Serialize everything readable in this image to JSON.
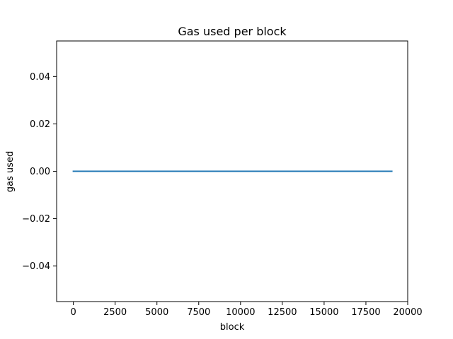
{
  "chart_data": {
    "type": "line",
    "title": "Gas used per block",
    "xlabel": "block",
    "ylabel": "gas used",
    "xlim": [
      -1000,
      20000
    ],
    "ylim": [
      -0.055,
      0.055
    ],
    "x_ticks": [
      0,
      2500,
      5000,
      7500,
      10000,
      12500,
      15000,
      17500,
      20000
    ],
    "x_tick_labels": [
      "0",
      "2500",
      "5000",
      "7500",
      "10000",
      "12500",
      "15000",
      "17500",
      "20000"
    ],
    "y_ticks": [
      -0.04,
      -0.02,
      0.0,
      0.02,
      0.04
    ],
    "y_tick_labels": [
      "−0.04",
      "−0.02",
      "0.00",
      "0.02",
      "0.04"
    ],
    "grid": false,
    "series": [
      {
        "color": "#1f77b4",
        "x": [
          0,
          19050
        ],
        "y": [
          0,
          0
        ]
      }
    ]
  }
}
